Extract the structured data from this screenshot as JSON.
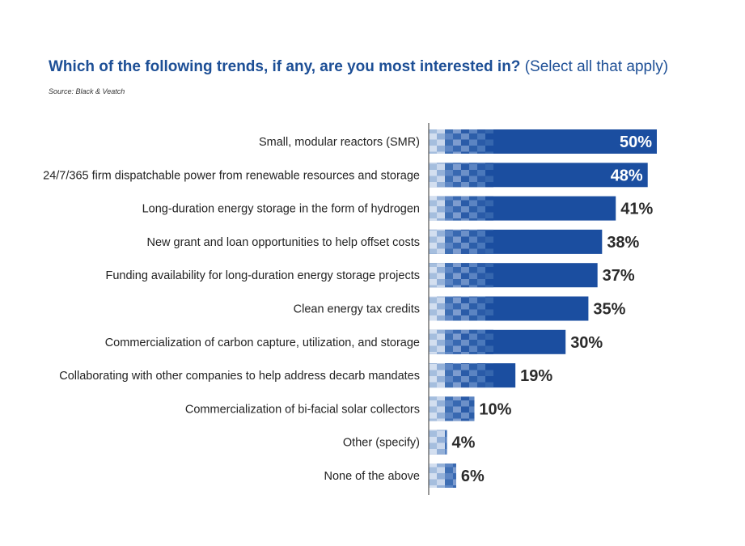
{
  "title_main": "Which of the following trends, if any, are you most interested in?",
  "title_sub": "(Select all that apply)",
  "source": "Source: Black & Veatch",
  "colors": {
    "bar": "#1b4ea0",
    "title": "#1d4f96",
    "label_in_bar": "#ffffff",
    "label_out": "#2b2b2b"
  },
  "chart_data": {
    "type": "bar",
    "orientation": "horizontal",
    "title": "Which of the following trends, if any, are you most interested in? (Select all that apply)",
    "categories": [
      "Small, modular reactors (SMR)",
      "24/7/365 firm dispatchable power from renewable resources and storage",
      "Long-duration energy storage in the form of hydrogen",
      "New grant and loan opportunities to help offset costs",
      "Funding availability for long-duration energy storage projects",
      "Clean energy tax credits",
      "Commercialization of carbon capture, utilization, and storage",
      "Collaborating with other companies to help address decarb mandates",
      "Commercialization of bi-facial solar collectors",
      "Other (specify)",
      "None of the above"
    ],
    "values": [
      50,
      48,
      41,
      38,
      37,
      35,
      30,
      19,
      10,
      4,
      6
    ],
    "value_labels": [
      "50%",
      "48%",
      "41%",
      "38%",
      "37%",
      "35%",
      "30%",
      "19%",
      "10%",
      "4%",
      "6%"
    ],
    "xlim": [
      0,
      50
    ],
    "grid": false,
    "legend": "none"
  }
}
